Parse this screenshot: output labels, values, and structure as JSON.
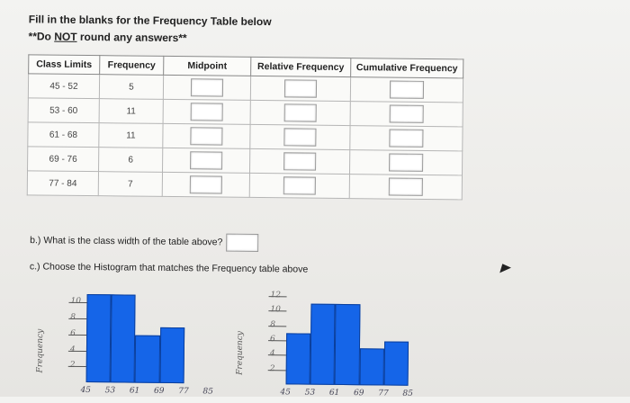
{
  "header": {
    "line1": "Fill in the blanks for the Frequency Table below",
    "line2_prefix": "**Do ",
    "line2_not": "NOT",
    "line2_suffix": " round any answers**"
  },
  "table": {
    "columns": [
      "Class Limits",
      "Frequency",
      "Midpoint",
      "Relative Frequency",
      "Cumulative Frequency"
    ],
    "rows": [
      {
        "limits": "45 - 52",
        "freq": "5"
      },
      {
        "limits": "53 - 60",
        "freq": "11"
      },
      {
        "limits": "61 - 68",
        "freq": "11"
      },
      {
        "limits": "69 - 76",
        "freq": "6"
      },
      {
        "limits": "77 - 84",
        "freq": "7"
      }
    ]
  },
  "question_b": "b.) What is the class width of the table above?",
  "question_c": "c.) Choose the Histogram that matches the Frequency table above",
  "chart_data": [
    {
      "type": "bar",
      "ylabel": "Frequency",
      "yticks": [
        "2",
        "4",
        "6",
        "8",
        "10"
      ],
      "xticks": [
        "45",
        "53",
        "61",
        "69",
        "77",
        "85"
      ],
      "ylim": [
        0,
        11.5
      ],
      "bin_edges": [
        45,
        53,
        61,
        69,
        77,
        85
      ],
      "values": [
        11,
        11,
        6,
        7,
        0
      ],
      "bars_start_index": 0
    },
    {
      "type": "bar",
      "ylabel": "Frequency",
      "yticks": [
        "2",
        "4",
        "6",
        "8",
        "10",
        "12"
      ],
      "xticks": [
        "45",
        "53",
        "61",
        "69",
        "77",
        "85"
      ],
      "ylim": [
        0,
        12.5
      ],
      "bin_edges": [
        45,
        53,
        61,
        69,
        77,
        85
      ],
      "values": [
        7,
        11,
        11,
        5,
        6
      ]
    }
  ],
  "colors": {
    "bar": "#1565e8",
    "bar_border": "#0b3f9c"
  }
}
